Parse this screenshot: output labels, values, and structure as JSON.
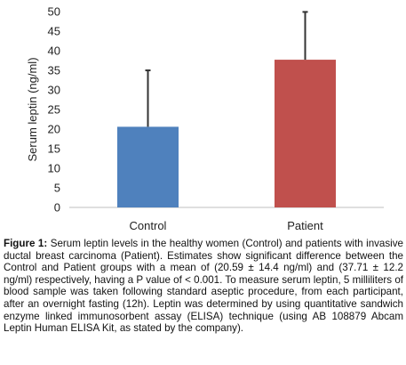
{
  "chart_data": {
    "type": "bar",
    "categories": [
      "Control",
      "Patient"
    ],
    "values": [
      20.59,
      37.71
    ],
    "errors": [
      14.4,
      12.2
    ],
    "colors": [
      "#4f81bd",
      "#c0504d"
    ],
    "error_bar_color": "#333333",
    "ylabel": "Serum leptin (ng/ml)",
    "xlabel": "",
    "ylim": [
      0,
      50
    ],
    "yticks": [
      0,
      5,
      10,
      15,
      20,
      25,
      30,
      35,
      40,
      45,
      50
    ],
    "grid": false,
    "legend": "none"
  },
  "caption": {
    "label": "Figure 1:",
    "text": " Serum leptin levels in the healthy women (Control) and patients with invasive ductal breast carcinoma (Patient). Estimates show significant difference between the Control and Patient groups with a mean of (20.59 ± 14.4 ng/ml) and (37.71 ± 12.2 ng/ml) respectively, having a P value of < 0.001. To measure serum leptin, 5 milliliters of blood sample was taken following standard aseptic procedure, from each participant, after an overnight fasting (12h). Leptin was determined by using quantitative sandwich enzyme linked immunosorbent assay (ELISA) technique (using AB 108879 Abcam Leptin Human ELISA Kit, as stated by the company)."
  }
}
